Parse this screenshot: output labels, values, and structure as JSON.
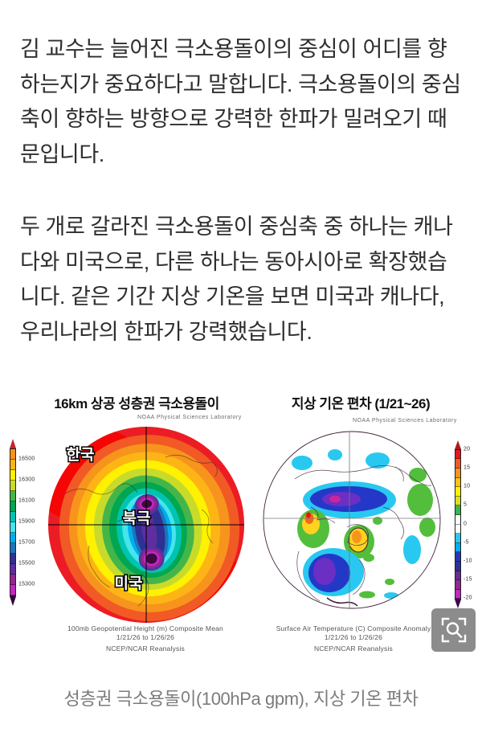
{
  "article": {
    "paragraphs": [
      "김 교수는 늘어진 극소용돌이의 중심이 어디를 향하는지가 중요하다고 말합니다. 극소용돌이의 중심축이 향하는 방향으로 강력한 한파가 밀려오기 때문입니다.",
      "두 개로 갈라진 극소용돌이 중심축 중 하나는 캐나다와 미국으로, 다른 하나는 동아시아로 확장했습니다. 같은 기간 지상 기온을 보면 미국과 캐나다, 우리나라의 한파가 강력했습니다."
    ],
    "image_caption": "성층권 극소용돌이(100hPa gpm), 지상 기온 편차"
  },
  "figure": {
    "left_map": {
      "title": "16km 상공 성층권 극소용돌이",
      "source_label": "NOAA Physical Sciences Laboratory",
      "labels": {
        "korea": "한국",
        "north_pole": "북극",
        "usa": "미국"
      },
      "caption_line1": "100mb Geopotential Height (m) Composite Mean",
      "caption_line2": "1/21/26  to 1/26/26",
      "caption_line3": "NCEP/NCAR Reanalysis",
      "colorbar": {
        "values": [
          "16500",
          "16300",
          "16100",
          "15900",
          "15700",
          "15500",
          "15300"
        ],
        "label_boundaries": [
          1,
          3,
          5,
          7,
          9,
          11,
          13
        ],
        "segment_colors": [
          "#F6921E",
          "#FDB515",
          "#FFF200",
          "#C9DB2A",
          "#44B649",
          "#00A651",
          "#00C4B3",
          "#45E5EC",
          "#00AEEF",
          "#1C75BC",
          "#2E3192",
          "#5F2DA0",
          "#93278F",
          "#C327C3"
        ],
        "top_arrow_color": "#C1272D",
        "bottom_arrow_color": "#33053B"
      }
    },
    "right_map": {
      "title": "지상 기온 편차 (1/21~26)",
      "source_label": "NOAA Physical Sciences Laboratory",
      "caption_line1": "Surface Air Temperature (C) Composite Anomaly",
      "caption_line2": "1/21/26  to 1/26/26",
      "caption_line3": "NCEP/NCAR Reanalysis",
      "colorbar": {
        "values": [
          "20",
          "15",
          "10",
          "5",
          "0",
          "-5",
          "-10",
          "-15",
          "-20"
        ],
        "label_boundaries": [
          0,
          2,
          4,
          6,
          8,
          10,
          12,
          14,
          16
        ],
        "segment_colors": [
          "#E8151B",
          "#F05A28",
          "#F7941D",
          "#FFC20E",
          "#FFF200",
          "#D9E021",
          "#39B54A",
          "#FFFFFF",
          "#FFFFFF",
          "#29C8F0",
          "#00AEEF",
          "#2438B8",
          "#2E3192",
          "#662D91",
          "#93278F",
          "#C327C3"
        ],
        "top_arrow_color": "#A81E22",
        "bottom_arrow_color": "#3F0747"
      }
    }
  }
}
